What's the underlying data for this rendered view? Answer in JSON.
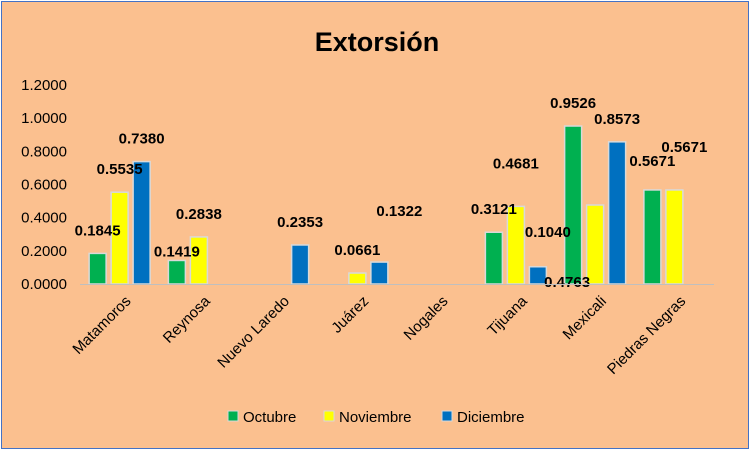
{
  "chart_data": {
    "type": "bar",
    "title": "Extorsión",
    "categories": [
      "Matamoros",
      "Reynosa",
      "Nuevo Laredo",
      "Juárez",
      "Nogales",
      "Tijuana",
      "Mexicali",
      "Piedras Negras"
    ],
    "series": [
      {
        "name": "Octubre",
        "color": "#00b050",
        "values": [
          0.1845,
          0.1419,
          null,
          null,
          null,
          0.3121,
          0.9526,
          0.5671
        ],
        "labels": [
          "0.1845",
          "0.1419",
          "",
          "",
          "",
          "0.3121",
          "0.9526",
          "0.5671"
        ]
      },
      {
        "name": "Noviembre",
        "color": "#ffff00",
        "values": [
          0.5535,
          0.2838,
          null,
          0.0661,
          null,
          0.4681,
          0.4763,
          0.5671
        ],
        "labels": [
          "0.5535",
          "0.2838",
          "",
          "0.0661",
          "",
          "0.4681",
          "0.4763",
          "0.5671"
        ]
      },
      {
        "name": "Diciembre",
        "color": "#0070c0",
        "values": [
          0.738,
          null,
          0.2353,
          0.1322,
          null,
          0.104,
          0.8573,
          null
        ],
        "labels": [
          "0.7380",
          "",
          "0.2353",
          "0.1322",
          "",
          "0.1040",
          "0.8573",
          ""
        ]
      }
    ],
    "yticks": [
      "0.0000",
      "0.2000",
      "0.4000",
      "0.6000",
      "0.8000",
      "1.0000",
      "1.2000"
    ],
    "ylim": [
      0,
      1.2
    ],
    "grid": false,
    "legend": "bottom",
    "background": "#fbc08f"
  }
}
